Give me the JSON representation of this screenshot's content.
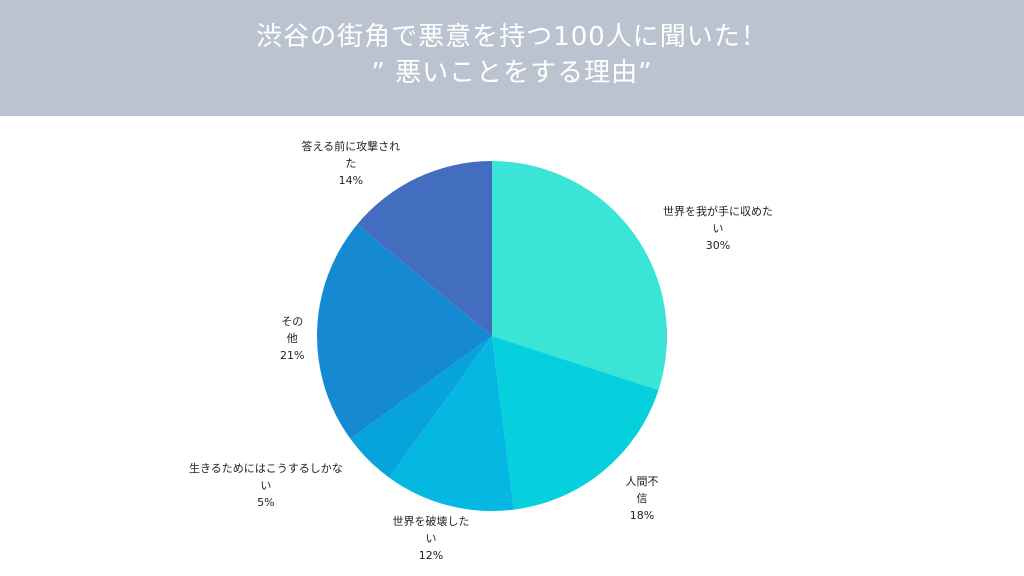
{
  "header": {
    "title_line1": "渋谷の街角で悪意を持つ100人に聞いた！",
    "title_line2": "” 悪いことをする理由”"
  },
  "chart_data": {
    "type": "pie",
    "title": "",
    "start_angle_deg": 0,
    "direction": "clockwise",
    "slices": [
      {
        "label_lines": [
          "世界を我が手に収めた",
          "い"
        ],
        "value": 30,
        "pct": "30%",
        "color": "#3ae4d6"
      },
      {
        "label_lines": [
          "人間不",
          "信"
        ],
        "value": 18,
        "pct": "18%",
        "color": "#06d0dd"
      },
      {
        "label_lines": [
          "世界を破壊した",
          "い"
        ],
        "value": 12,
        "pct": "12%",
        "color": "#04b8e1"
      },
      {
        "label_lines": [
          "生きるためにはこうするしかな",
          "い"
        ],
        "value": 5,
        "pct": "5%",
        "color": "#07a4dc"
      },
      {
        "label_lines": [
          "その",
          "他"
        ],
        "value": 21,
        "pct": "21%",
        "color": "#1589d2"
      },
      {
        "label_lines": [
          "答える前に攻撃され",
          "た"
        ],
        "value": 14,
        "pct": "14%",
        "color": "#436ec0"
      }
    ]
  }
}
